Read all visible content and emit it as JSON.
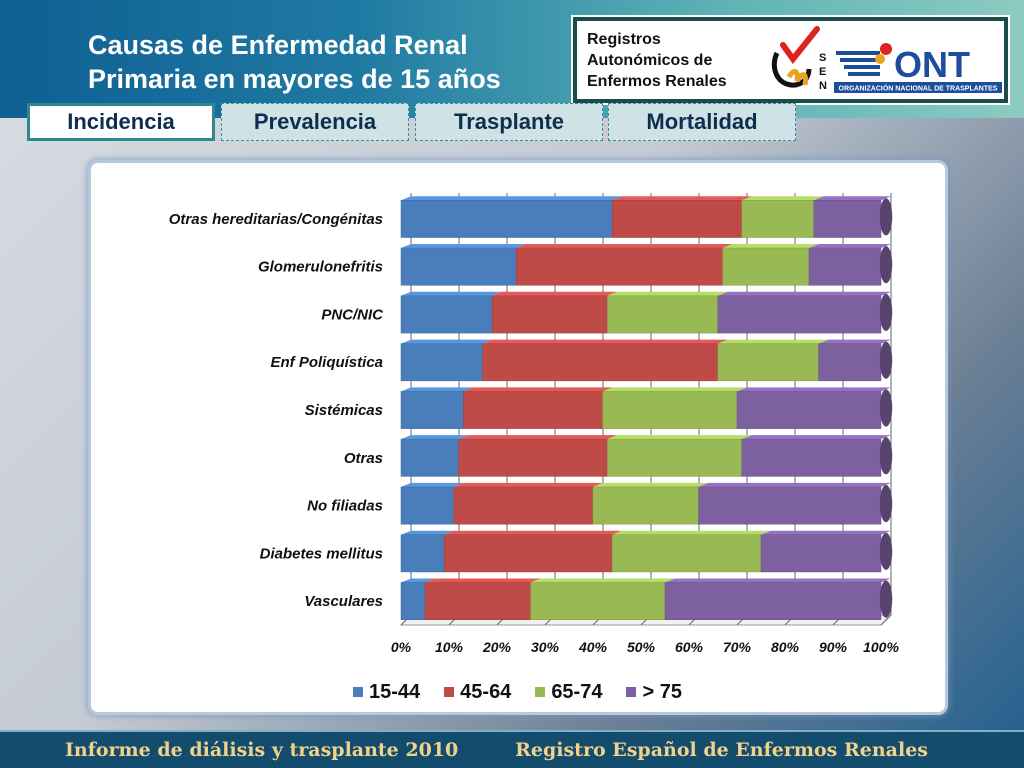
{
  "header": {
    "title_line1": "Causas de Enfermedad Renal",
    "title_line2": "Primaria en mayores de 15 años",
    "registry_line1": "Registros",
    "registry_line2": "Autonómicos de",
    "registry_line3": "Enfermos Renales",
    "ont_logo_text": "ONT",
    "ont_logo_subtext": "ORGANIZACIÓN NACIONAL DE TRASPLANTES",
    "sen_logo_text": "SEN"
  },
  "tabs": [
    {
      "label": "Incidencia",
      "active": true
    },
    {
      "label": "Prevalencia",
      "active": false
    },
    {
      "label": "Trasplante",
      "active": false
    },
    {
      "label": "Mortalidad",
      "active": false
    }
  ],
  "footer": {
    "left": "Informe de diálisis y trasplante 2010",
    "right": "Registro Español de Enfermos Renales"
  },
  "chart_data": {
    "type": "bar",
    "orientation": "horizontal",
    "stacked": "percent",
    "categories": [
      "Otras hereditarias/Congénitas",
      "Glomerulonefritis",
      "PNC/NIC",
      "Enf Poliquística",
      "Sistémicas",
      "Otras",
      "No filiadas",
      "Diabetes mellitus",
      "Vasculares"
    ],
    "series": [
      {
        "name": "15-44",
        "color": "#4a7ebb",
        "values": [
          44,
          24,
          19,
          17,
          13,
          12,
          11,
          9,
          5
        ]
      },
      {
        "name": "45-64",
        "color": "#be4b48",
        "values": [
          27,
          43,
          24,
          49,
          29,
          31,
          29,
          35,
          22
        ]
      },
      {
        "name": "65-74",
        "color": "#98b954",
        "values": [
          15,
          18,
          23,
          21,
          28,
          28,
          22,
          31,
          28
        ]
      },
      {
        "name": "> 75",
        "color": "#7d60a0",
        "values": [
          14,
          15,
          34,
          13,
          30,
          29,
          38,
          25,
          45
        ]
      }
    ],
    "xlim": [
      0,
      100
    ],
    "xticks": [
      "0%",
      "10%",
      "20%",
      "30%",
      "40%",
      "50%",
      "60%",
      "70%",
      "80%",
      "90%",
      "100%"
    ],
    "grid": true,
    "legend_position": "bottom"
  }
}
